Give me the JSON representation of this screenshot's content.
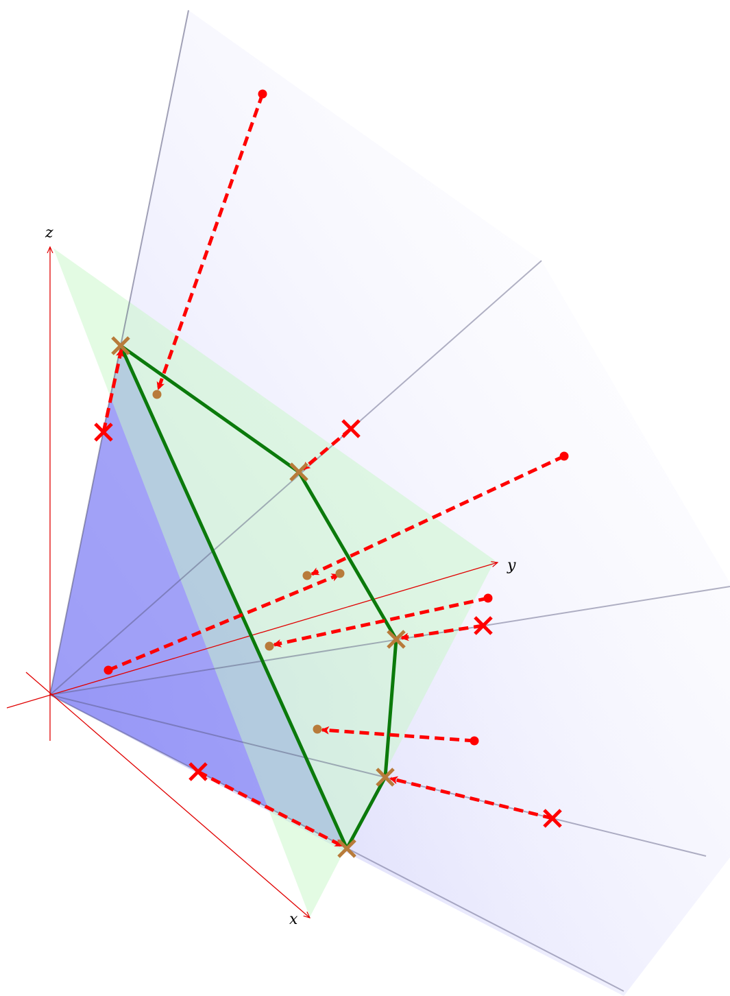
{
  "axes": {
    "x_label": "x",
    "y_label": "y",
    "z_label": "z"
  },
  "colors": {
    "axis": "#e00000",
    "simplex_plane": "#c8f7c8",
    "cone_fill": "#7b7bf5",
    "cone_fade": "#c9c9fb",
    "polygon_edge": "#0b7a0b",
    "projection_arrow": "#ff0000",
    "projected_marker": "#b87b3a",
    "ray": "#6a6a8a"
  },
  "legend": [],
  "markers": {
    "projected_point_icon": "brown-dot",
    "vertex_icon": "brown-cross",
    "external_point_icon": "red-dot",
    "infeasible_point_icon": "red-cross"
  }
}
